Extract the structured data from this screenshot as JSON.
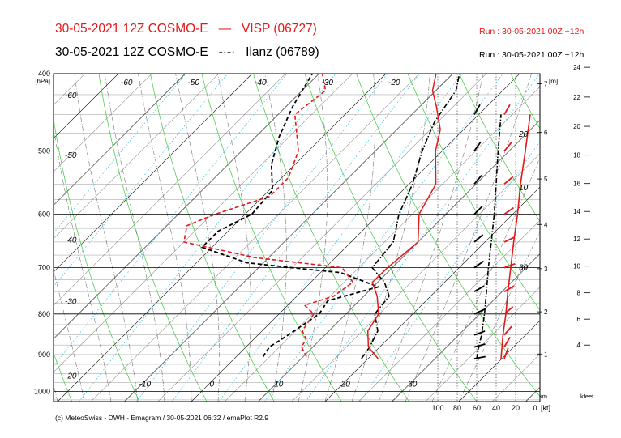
{
  "header": {
    "line1": {
      "left": "30-05-2021 12Z COSMO-E",
      "station": "VISP (06727)",
      "run": "Run : 30-05-2021 00Z +12h"
    },
    "line2": {
      "left": "30-05-2021 12Z COSMO-E",
      "station": "Ilanz (06789)",
      "run": "Run : 30-05-2021 00Z +12h"
    }
  },
  "footer": {
    "credit": "(c) MeteoSwiss - DWH - Emagram / 30-05-2021 06:32 / emaPlot R2.9"
  },
  "colors": {
    "visp": "#e31a1c",
    "ilanz": "#000000",
    "dry_adiabat": "#3cc83c",
    "mixing_ratio": "#5bc8e6"
  },
  "chart_data": {
    "type": "line",
    "diagram": "emagram",
    "y_axis": {
      "label": "[hPa]",
      "ticks": [
        400,
        500,
        600,
        700,
        800,
        900,
        1000
      ],
      "range": [
        400,
        1030
      ],
      "scale": "log"
    },
    "x_axis": {
      "ticks": [
        -10,
        0,
        10,
        20,
        30
      ]
    },
    "isotherm_labels": [
      -60,
      -50,
      -40,
      -30,
      -20
    ],
    "isotherm_labels_left": [
      -60,
      -50,
      -40,
      -30,
      -20
    ],
    "height_axis_m": {
      "label": "[m]",
      "ticks": [
        1,
        2,
        3,
        4,
        5,
        6,
        7
      ]
    },
    "height_axis_kfeet": {
      "label": "kfeet",
      "ticks": [
        4,
        6,
        8,
        10,
        12,
        14,
        16,
        18,
        20,
        22,
        24
      ]
    },
    "wind_axis": {
      "label": "[kt]",
      "unit_label": "km",
      "ticks": [
        100,
        80,
        60,
        40,
        20,
        0
      ]
    },
    "wind_speed_labels": [
      10,
      20,
      30
    ],
    "series": [
      {
        "name": "VISP (06727)",
        "temperature": [
          [
            910,
            21.5
          ],
          [
            880,
            18.3
          ],
          [
            840,
            15.8
          ],
          [
            800,
            14.9
          ],
          [
            760,
            12.0
          ],
          [
            730,
            9.2
          ],
          [
            700,
            9.3
          ],
          [
            650,
            10.0
          ],
          [
            600,
            6.0
          ],
          [
            550,
            4.0
          ],
          [
            500,
            -1.0
          ],
          [
            470,
            -3.5
          ],
          [
            440,
            -7.5
          ],
          [
            420,
            -10.5
          ],
          [
            400,
            -12.5
          ]
        ],
        "dewpoint": [
          [
            905,
            10.5
          ],
          [
            880,
            8.3
          ],
          [
            860,
            7.8
          ],
          [
            840,
            6.0
          ],
          [
            800,
            5.2
          ],
          [
            780,
            2.5
          ],
          [
            760,
            5.5
          ],
          [
            730,
            6.3
          ],
          [
            700,
            2.5
          ],
          [
            680,
            -12.0
          ],
          [
            650,
            -25.0
          ],
          [
            620,
            -27.0
          ],
          [
            600,
            -24.5
          ],
          [
            570,
            -19.0
          ],
          [
            540,
            -19.0
          ],
          [
            500,
            -21.5
          ],
          [
            450,
            -27.5
          ],
          [
            420,
            -26.5
          ],
          [
            400,
            -29.5
          ]
        ],
        "wind": {
          "speed_kt": [
            35,
            34,
            33,
            30,
            28,
            25,
            22,
            18,
            15,
            10,
            5
          ],
          "direction_deg": [
            200,
            210,
            220,
            230,
            240,
            250,
            245,
            235,
            230,
            220,
            210
          ]
        }
      },
      {
        "name": "Ilanz (06789)",
        "temperature": [
          [
            910,
            19.0
          ],
          [
            880,
            18.5
          ],
          [
            840,
            17.3
          ],
          [
            800,
            14.3
          ],
          [
            760,
            13.8
          ],
          [
            730,
            11.0
          ],
          [
            700,
            7.0
          ],
          [
            650,
            6.3
          ],
          [
            600,
            3.0
          ],
          [
            550,
            0.5
          ],
          [
            500,
            -3.0
          ],
          [
            460,
            -5.5
          ],
          [
            420,
            -7.0
          ],
          [
            400,
            -9.0
          ]
        ],
        "dewpoint": [
          [
            905,
            4.0
          ],
          [
            880,
            3.5
          ],
          [
            850,
            4.5
          ],
          [
            800,
            6.0
          ],
          [
            770,
            5.3
          ],
          [
            740,
            10.8
          ],
          [
            710,
            3.0
          ],
          [
            700,
            -5.0
          ],
          [
            690,
            -12.5
          ],
          [
            660,
            -21.5
          ],
          [
            630,
            -21.5
          ],
          [
            600,
            -19.0
          ],
          [
            560,
            -19.5
          ],
          [
            520,
            -23.5
          ],
          [
            480,
            -26.5
          ],
          [
            440,
            -29.0
          ],
          [
            400,
            -31.0
          ]
        ],
        "wind": {
          "speed_kt": [
            60,
            58,
            55,
            52,
            50,
            48,
            45,
            42,
            40,
            38,
            35
          ],
          "direction_deg": [
            260,
            255,
            250,
            245,
            240,
            235,
            230,
            225,
            220,
            215,
            210
          ]
        }
      }
    ]
  }
}
